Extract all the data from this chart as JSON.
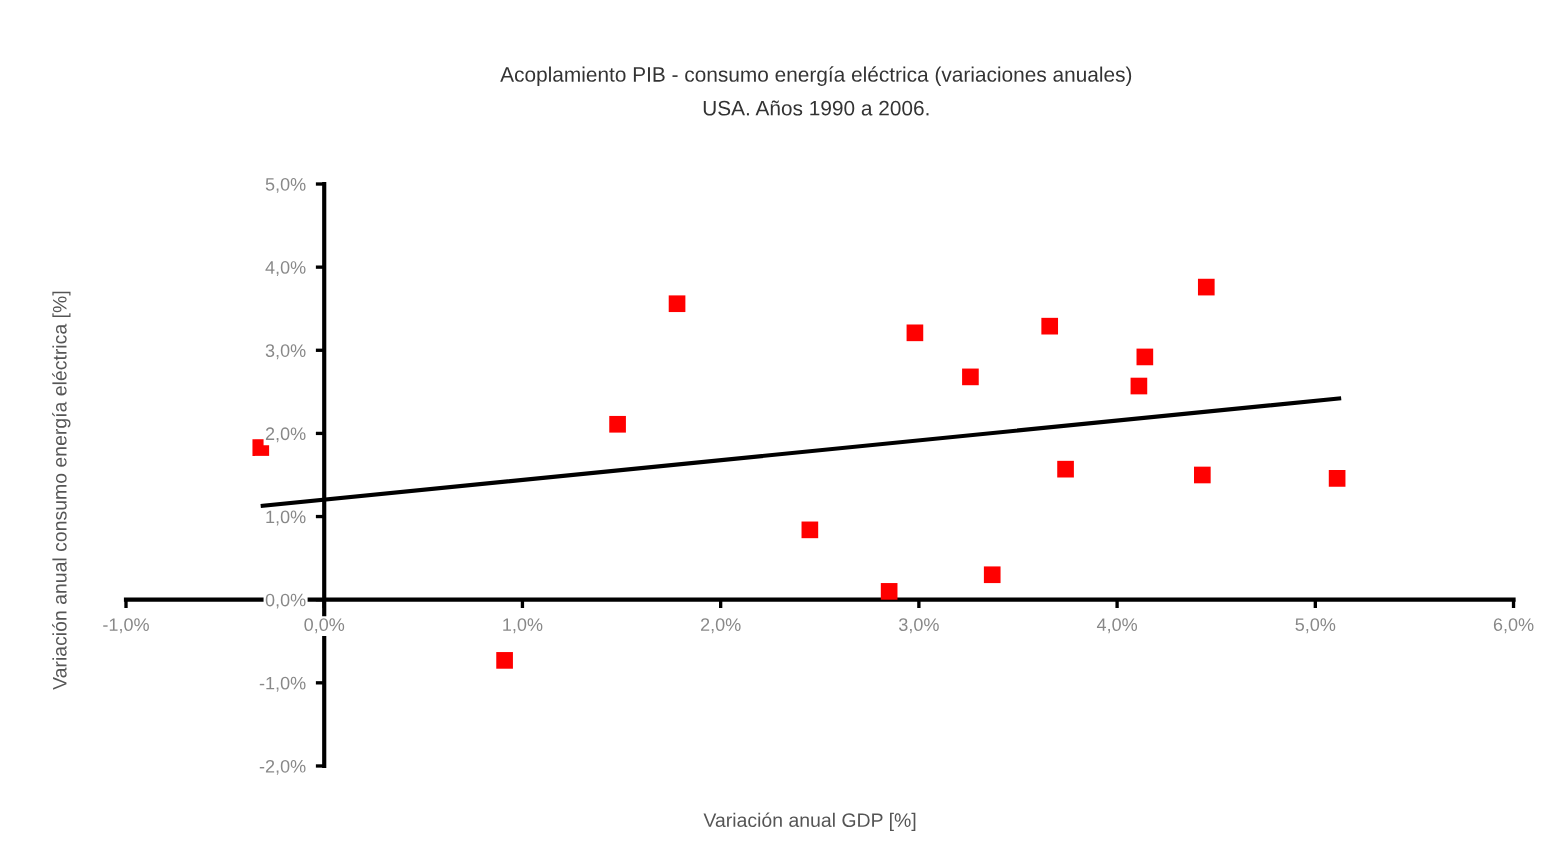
{
  "chart_data": {
    "type": "scatter",
    "title": "Acoplamiento PIB - consumo energía eléctrica (variaciones anuales)",
    "subtitle": "USA. Años 1990 a 2006.",
    "xlabel": "Variación anual GDP [%]",
    "ylabel": "Variación anual consumo energía eléctrica [%]",
    "xlim": [
      -1,
      6
    ],
    "ylim": [
      -2,
      5
    ],
    "xticks": [
      {
        "value": -1,
        "label": "-1,0%"
      },
      {
        "value": 0,
        "label": "0,0%"
      },
      {
        "value": 1,
        "label": "1,0%"
      },
      {
        "value": 2,
        "label": "2,0%"
      },
      {
        "value": 3,
        "label": "3,0%"
      },
      {
        "value": 4,
        "label": "4,0%"
      },
      {
        "value": 5,
        "label": "5,0%"
      },
      {
        "value": 6,
        "label": "6,0%"
      }
    ],
    "yticks": [
      {
        "value": -2,
        "label": "-2,0%"
      },
      {
        "value": -1,
        "label": "-1,0%"
      },
      {
        "value": 0,
        "label": "0,0%"
      },
      {
        "value": 1,
        "label": "1,0%"
      },
      {
        "value": 2,
        "label": "2,0%"
      },
      {
        "value": 3,
        "label": "3,0%"
      },
      {
        "value": 4,
        "label": "4,0%"
      },
      {
        "value": 5,
        "label": "5,0%"
      }
    ],
    "series": [
      {
        "color": "#ff0000",
        "marker": "square",
        "x": [
          -0.32,
          0.91,
          1.48,
          1.78,
          2.45,
          2.85,
          2.98,
          3.26,
          3.37,
          3.66,
          3.74,
          4.11,
          4.14,
          4.45,
          4.43,
          5.11
        ],
        "values": [
          1.83,
          -0.73,
          2.11,
          3.56,
          0.84,
          0.1,
          3.21,
          2.68,
          0.3,
          3.29,
          1.57,
          2.57,
          2.92,
          3.76,
          1.5,
          1.46
        ]
      },
      {
        "type": "line",
        "color": "#000000",
        "marker": "none",
        "line_style": "solid",
        "x": [
          -0.31,
          5.12
        ],
        "values": [
          1.13,
          2.42
        ]
      }
    ]
  }
}
